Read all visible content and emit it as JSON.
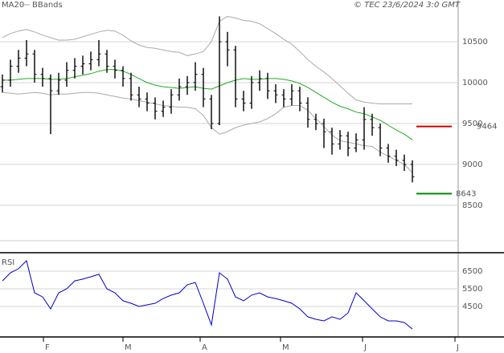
{
  "chart_data": [
    {
      "type": "ohlc",
      "source": "© TEC 23/6/2024 3:0 GMT",
      "x": [
        0,
        1,
        2,
        3,
        4,
        5,
        6,
        7,
        8,
        9,
        10,
        11,
        12,
        13,
        14,
        15,
        16,
        17,
        18,
        19,
        20,
        21,
        22,
        23,
        24,
        25,
        26,
        27,
        28,
        29,
        30,
        31,
        32,
        33,
        34,
        35,
        36,
        37,
        38,
        39,
        40,
        41,
        42,
        43,
        44,
        45,
        46,
        47,
        48,
        49,
        50,
        51
      ],
      "open": [
        9950,
        10030,
        10200,
        10300,
        10350,
        10100,
        10050,
        9900,
        10030,
        10150,
        10200,
        10230,
        10280,
        10350,
        10200,
        10150,
        10050,
        9850,
        9800,
        9750,
        9650,
        9700,
        9850,
        9950,
        10000,
        10100,
        9800,
        9500,
        10500,
        10400,
        9800,
        9750,
        10000,
        10050,
        9900,
        9850,
        9800,
        9900,
        9750,
        9550,
        9500,
        9400,
        9250,
        9350,
        9200,
        9300,
        9550,
        9450,
        9200,
        9100,
        9050,
        9000
      ],
      "high": [
        10100,
        10280,
        10400,
        10520,
        10400,
        10180,
        10100,
        10120,
        10250,
        10300,
        10330,
        10380,
        10520,
        10400,
        10280,
        10200,
        10120,
        9950,
        9880,
        9820,
        9780,
        9920,
        10050,
        10080,
        10250,
        10180,
        9850,
        10810,
        10620,
        10450,
        9900,
        10080,
        10150,
        10120,
        9980,
        9920,
        9980,
        9950,
        9820,
        9620,
        9560,
        9450,
        9420,
        9400,
        9380,
        9700,
        9620,
        9500,
        9250,
        9180,
        9120,
        9050
      ],
      "low": [
        9880,
        9950,
        10120,
        10200,
        10000,
        9950,
        9370,
        9850,
        9950,
        10050,
        10100,
        10150,
        10200,
        10120,
        10050,
        9950,
        9780,
        9700,
        9650,
        9550,
        9580,
        9620,
        9780,
        9850,
        9900,
        9700,
        9430,
        9480,
        10200,
        9700,
        9650,
        9680,
        9900,
        9800,
        9750,
        9700,
        9720,
        9650,
        9450,
        9420,
        9200,
        9120,
        9180,
        9100,
        9150,
        9180,
        9350,
        9100,
        9020,
        8980,
        8920,
        8780
      ],
      "close": [
        10030,
        10200,
        10300,
        10350,
        10100,
        10050,
        9900,
        10030,
        10150,
        10200,
        10230,
        10280,
        10350,
        10200,
        10150,
        10050,
        9850,
        9800,
        9750,
        9650,
        9700,
        9850,
        9950,
        10000,
        10100,
        9800,
        9500,
        10500,
        10400,
        9800,
        9750,
        10000,
        10050,
        9900,
        9850,
        9800,
        9900,
        9750,
        9550,
        9500,
        9400,
        9250,
        9350,
        9200,
        9300,
        9550,
        9450,
        9200,
        9100,
        9050,
        9000,
        8850
      ],
      "bar_color": "#000000",
      "series": [
        {
          "name": "MA20",
          "color": "#22aa22",
          "values": [
            10030,
            10030,
            10040,
            10050,
            10050,
            10050,
            10040,
            10040,
            10050,
            10070,
            10090,
            10110,
            10140,
            10160,
            10160,
            10140,
            10100,
            10050,
            10000,
            9970,
            9950,
            9940,
            9930,
            9940,
            9950,
            9930,
            9920,
            9960,
            10000,
            10030,
            10050,
            10040,
            10040,
            10050,
            10050,
            10040,
            10020,
            9990,
            9940,
            9880,
            9820,
            9760,
            9710,
            9680,
            9640,
            9620,
            9580,
            9540,
            9480,
            9420,
            9370,
            9300
          ]
        },
        {
          "name": "BBands",
          "color": "#aaaaaa",
          "upper": [
            10550,
            10600,
            10630,
            10650,
            10620,
            10580,
            10550,
            10520,
            10520,
            10530,
            10560,
            10590,
            10620,
            10640,
            10630,
            10580,
            10510,
            10460,
            10430,
            10420,
            10400,
            10380,
            10370,
            10330,
            10350,
            10380,
            10500,
            10750,
            10810,
            10790,
            10760,
            10750,
            10720,
            10660,
            10600,
            10530,
            10470,
            10380,
            10280,
            10200,
            10130,
            10050,
            9960,
            9870,
            9790,
            9760,
            9750,
            9740,
            9740,
            9740,
            9740,
            9740
          ],
          "lower": [
            9880,
            9870,
            9860,
            9870,
            9880,
            9870,
            9850,
            9860,
            9860,
            9870,
            9880,
            9880,
            9870,
            9850,
            9830,
            9810,
            9800,
            9780,
            9760,
            9740,
            9720,
            9710,
            9700,
            9700,
            9680,
            9600,
            9450,
            9370,
            9400,
            9450,
            9480,
            9500,
            9520,
            9560,
            9620,
            9700,
            9720,
            9720,
            9660,
            9560,
            9460,
            9360,
            9290,
            9270,
            9250,
            9230,
            9220,
            9150,
            9100,
            9050,
            9000,
            8900
          ]
        }
      ],
      "levels": [
        {
          "value": 9464,
          "color": "#cc0000"
        },
        {
          "value": 8643,
          "color": "#008800"
        }
      ],
      "xlim": [
        -0.3,
        56.7
      ],
      "ylim": [
        7940,
        11010
      ],
      "yticks": [
        8500,
        9000,
        9500,
        10000,
        10500
      ],
      "grid": true
    },
    {
      "type": "line",
      "title": "RSI",
      "color": "#0000cc",
      "x": [
        0,
        1,
        2,
        3,
        4,
        5,
        6,
        7,
        8,
        9,
        10,
        11,
        12,
        13,
        14,
        15,
        16,
        17,
        18,
        19,
        20,
        21,
        22,
        23,
        24,
        25,
        26,
        27,
        28,
        29,
        30,
        31,
        32,
        33,
        34,
        35,
        36,
        37,
        38,
        39,
        40,
        41,
        42,
        43,
        44,
        45,
        46,
        47,
        48,
        49,
        50,
        51
      ],
      "values": [
        5950,
        6410,
        6640,
        7090,
        5270,
        5040,
        4360,
        5270,
        5500,
        5950,
        6050,
        6180,
        6320,
        5500,
        5270,
        4820,
        4680,
        4500,
        4590,
        4680,
        4950,
        5140,
        5270,
        5730,
        5860,
        4680,
        3450,
        6410,
        6050,
        5040,
        4820,
        5140,
        5270,
        5040,
        4950,
        4820,
        4680,
        4360,
        3910,
        3770,
        3680,
        3910,
        3770,
        4130,
        5270,
        4820,
        4360,
        3910,
        3680,
        3680,
        3590,
        3220
      ],
      "xlim": [
        -0.3,
        56.7
      ],
      "ylim": [
        2770,
        7500
      ],
      "yticks": [
        4500,
        5500,
        6500
      ],
      "xticks": [
        {
          "value": 5.1,
          "label": "F"
        },
        {
          "value": 15,
          "label": "M"
        },
        {
          "value": 24.6,
          "label": "A"
        },
        {
          "value": 34.6,
          "label": "M"
        },
        {
          "value": 44.8,
          "label": "J"
        },
        {
          "value": 56.3,
          "label": "J"
        }
      ],
      "grid": true
    }
  ]
}
